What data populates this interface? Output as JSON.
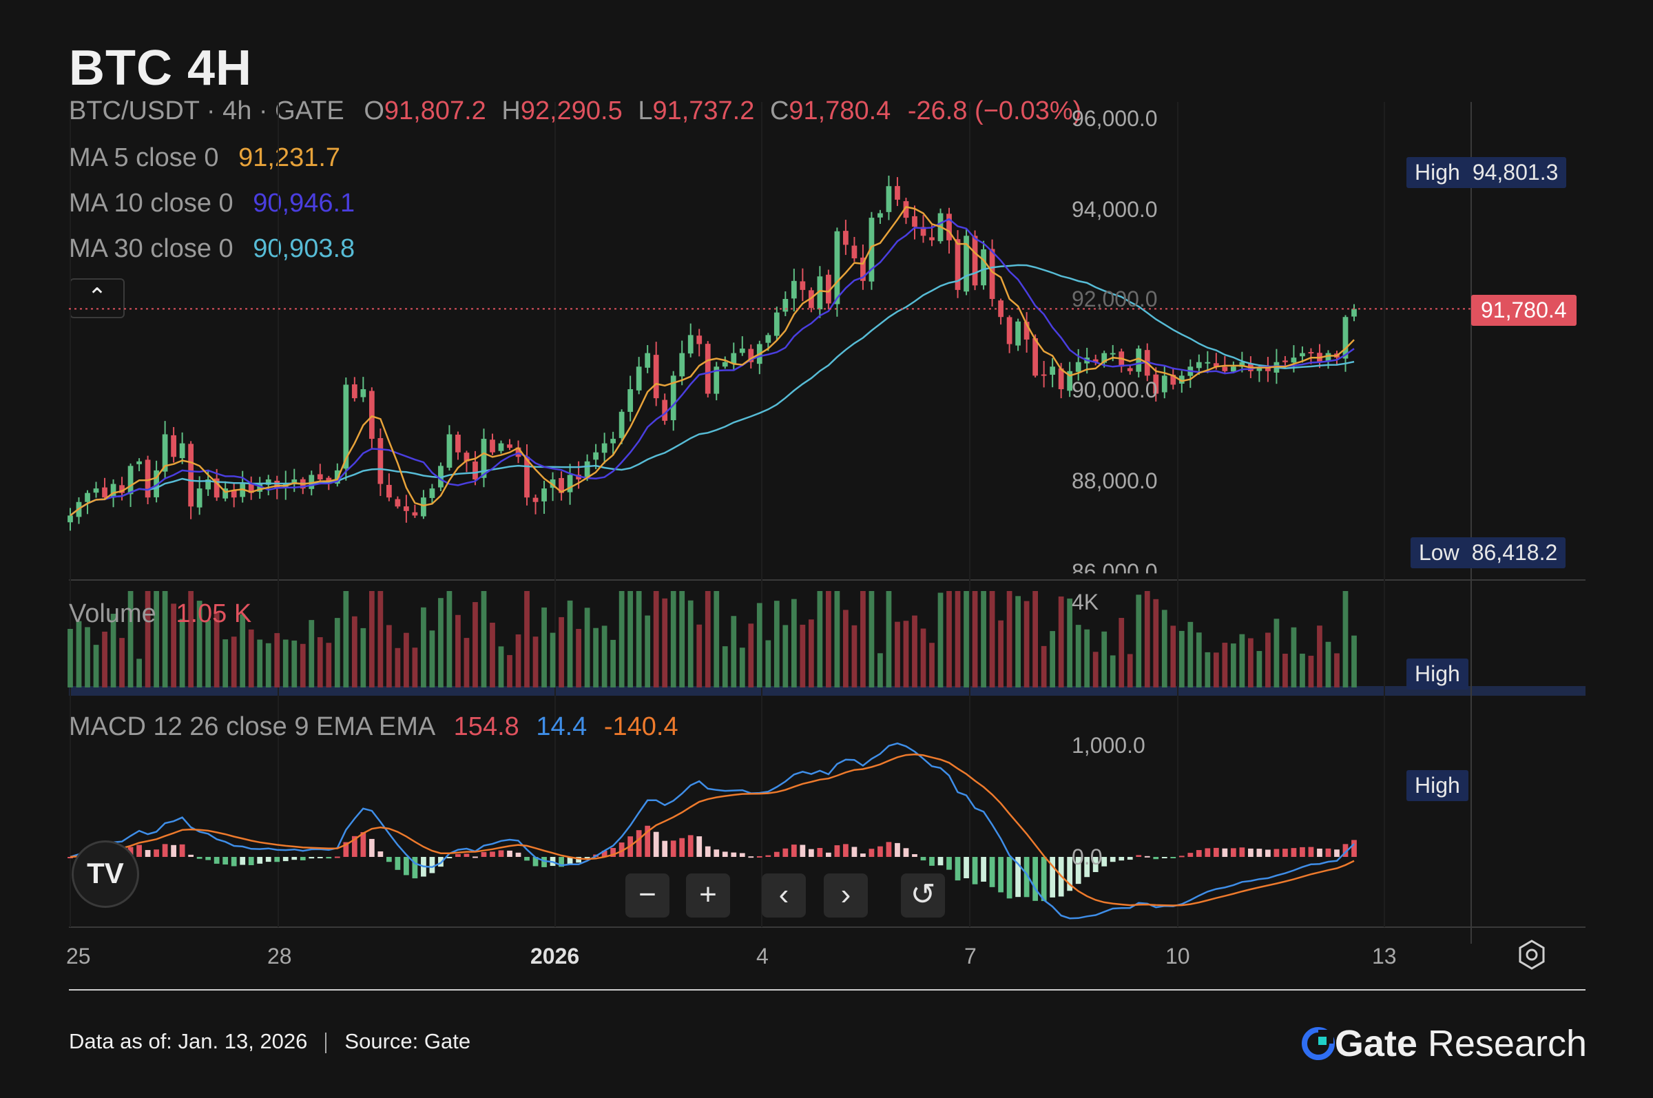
{
  "title": "BTC 4H",
  "symbol_line": {
    "pair": "BTC/USDT · 4h · GATE",
    "o_label": "O",
    "o": "91,807.2",
    "h_label": "H",
    "h": "92,290.5",
    "l_label": "L",
    "l": "91,737.2",
    "c_label": "C",
    "c": "91,780.4",
    "change": "-26.8 (−0.03%)"
  },
  "ma": [
    {
      "label": "MA 5 close 0",
      "value": "91,231.7",
      "color": "#e8a33a"
    },
    {
      "label": "MA 10 close 0",
      "value": "90,946.1",
      "color": "#4a3ee0"
    },
    {
      "label": "MA 30 close 0",
      "value": "90,903.8",
      "color": "#57bcd6"
    }
  ],
  "volume": {
    "label": "Volume",
    "value": "1.05 K",
    "axis": "4K",
    "high_label": "High"
  },
  "macd": {
    "label": "MACD 12 26 close 9 EMA EMA",
    "hist": "154.8",
    "macd": "14.4",
    "signal": "-140.4",
    "axis_top": "1,000.0",
    "axis_zero": "0.0",
    "high_label": "High"
  },
  "price_axis": [
    "96,000.0",
    "94,000.0",
    "90,000.0",
    "88,000.0",
    "86,000.0"
  ],
  "high_tag": {
    "label": "High",
    "value": "94,801.3"
  },
  "low_tag": {
    "label": "Low",
    "value": "86,418.2"
  },
  "last_price": "91,780.4",
  "hidden_axis_label": "92,000.0",
  "x_axis": [
    "25",
    "28",
    "2026",
    "4",
    "7",
    "10",
    "13"
  ],
  "controls": {
    "zoom_out": "−",
    "zoom_in": "+",
    "prev": "‹",
    "next": "›",
    "reset": "↺"
  },
  "collapse_glyph": "⌃",
  "tv_logo": "TV",
  "footer": {
    "date": "Data as of: Jan. 13, 2026",
    "source": "Source:  Gate"
  },
  "brand": {
    "name": "Gate",
    "suffix": " Research"
  },
  "colors": {
    "up": "#5fbf85",
    "down": "#e0525e",
    "ma5": "#e8a33a",
    "ma10": "#4a3ee0",
    "ma30": "#57bcd6",
    "macd": "#3f8ee8",
    "signal": "#ee7a2c"
  },
  "chart_data": {
    "type": "candlestick",
    "title": "BTC 4H",
    "ylim": [
      86000,
      96000
    ],
    "x_ticks": [
      "25",
      "28",
      "2026",
      "4",
      "7",
      "10",
      "13"
    ],
    "close": [
      87200,
      87500,
      87700,
      87800,
      87600,
      87900,
      87700,
      88300,
      88400,
      87600,
      88200,
      89000,
      88500,
      88800,
      87400,
      87800,
      88000,
      87600,
      87800,
      87600,
      87900,
      87700,
      87900,
      88000,
      87800,
      87900,
      88000,
      87800,
      88100,
      88000,
      87900,
      88200,
      90100,
      89800,
      90000,
      88900,
      87900,
      87600,
      87400,
      87300,
      87200,
      87600,
      87800,
      88300,
      89000,
      88600,
      88400,
      88000,
      88900,
      88600,
      88800,
      88700,
      88500,
      87600,
      87500,
      87800,
      88000,
      87700,
      88100,
      88000,
      88400,
      88600,
      88800,
      88900,
      89500,
      90000,
      90500,
      90800,
      89800,
      89300,
      90300,
      90800,
      91200,
      91000,
      89900,
      90500,
      90600,
      90800,
      90900,
      90600,
      91000,
      91200,
      91700,
      92000,
      92400,
      92200,
      91800,
      92500,
      91900,
      93500,
      93200,
      92900,
      92400,
      93800,
      93900,
      94500,
      94200,
      93800,
      93600,
      93400,
      93300,
      93900,
      93300,
      92200,
      93400,
      92300,
      93100,
      92000,
      91600,
      91000,
      91500,
      91100,
      90300,
      90300,
      90500,
      90000,
      90400,
      90600,
      90700,
      90600,
      90800,
      90800,
      90500,
      90400,
      90900,
      90300,
      89900,
      90300,
      90100,
      90300,
      90500,
      90600,
      90600,
      90500,
      90400,
      90500,
      90600,
      90400,
      90500,
      90400,
      90600,
      90600,
      90700,
      90800,
      90800,
      90600,
      90800,
      90700,
      91600,
      91780
    ]
  }
}
